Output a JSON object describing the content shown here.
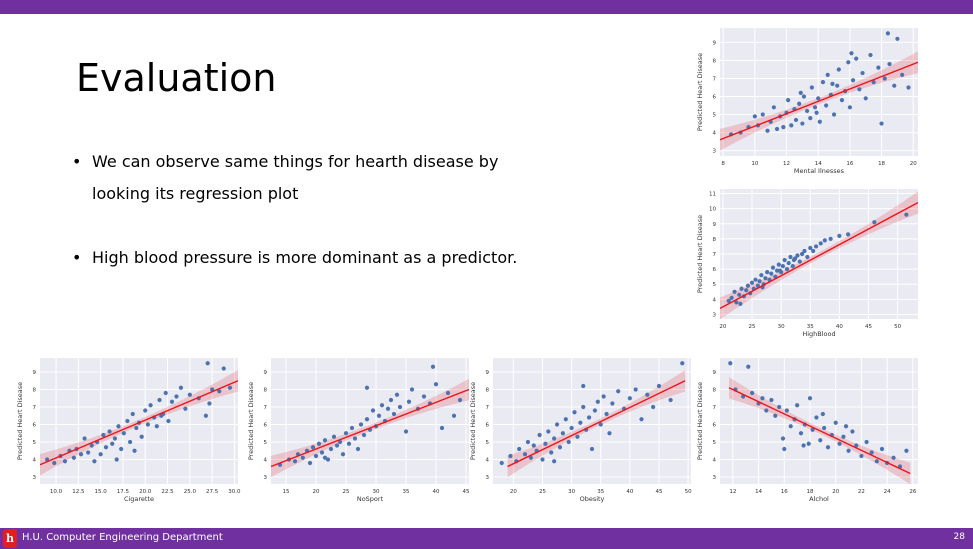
{
  "slide": {
    "title": "Evaluation",
    "bullets": [
      "We can observe same things for hearth disease by looking its regression plot",
      "High blood pressure is more dominant as a predictor."
    ]
  },
  "footer": {
    "text": "H.U. Computer Engineering Department",
    "page_number": "28"
  },
  "colors": {
    "band": "#7030a0",
    "logo": "#e02020",
    "plot_bg": "#eaeaf2",
    "point": "#4c72b0",
    "regression": "#e8151b"
  },
  "chart_data": [
    {
      "type": "scatter",
      "xlabel": "Mental Ilnesses",
      "ylabel": "Predicted Heart Disease",
      "xticks": [
        8,
        10,
        12,
        14,
        16,
        18,
        20
      ],
      "yticks": [
        3,
        4,
        5,
        6,
        7,
        8,
        9
      ],
      "xlim": [
        7.8,
        20.3
      ],
      "ylim": [
        2.7,
        9.8
      ],
      "regression": [
        [
          7.8,
          3.6
        ],
        [
          20.3,
          7.9
        ]
      ],
      "points": [
        [
          8.5,
          3.9
        ],
        [
          9.1,
          4.0
        ],
        [
          9.6,
          4.3
        ],
        [
          10.0,
          4.9
        ],
        [
          10.2,
          4.4
        ],
        [
          10.5,
          5.0
        ],
        [
          10.8,
          4.1
        ],
        [
          11.0,
          4.6
        ],
        [
          11.2,
          5.4
        ],
        [
          11.4,
          4.2
        ],
        [
          11.6,
          4.9
        ],
        [
          11.8,
          4.3
        ],
        [
          12.0,
          5.1
        ],
        [
          12.1,
          5.8
        ],
        [
          12.3,
          4.4
        ],
        [
          12.5,
          5.3
        ],
        [
          12.6,
          4.7
        ],
        [
          12.8,
          5.6
        ],
        [
          13.0,
          4.5
        ],
        [
          13.1,
          6.0
        ],
        [
          13.3,
          5.2
        ],
        [
          13.5,
          4.8
        ],
        [
          13.6,
          6.5
        ],
        [
          13.8,
          5.4
        ],
        [
          14.0,
          5.9
        ],
        [
          14.1,
          4.6
        ],
        [
          14.3,
          6.8
        ],
        [
          14.5,
          5.5
        ],
        [
          14.6,
          7.2
        ],
        [
          14.8,
          6.1
        ],
        [
          15.0,
          5.0
        ],
        [
          15.2,
          6.6
        ],
        [
          15.3,
          7.5
        ],
        [
          15.5,
          5.8
        ],
        [
          15.7,
          6.3
        ],
        [
          15.9,
          7.9
        ],
        [
          16.0,
          5.4
        ],
        [
          16.2,
          6.9
        ],
        [
          16.4,
          8.1
        ],
        [
          16.6,
          6.4
        ],
        [
          16.8,
          7.3
        ],
        [
          17.0,
          5.9
        ],
        [
          17.3,
          8.3
        ],
        [
          17.5,
          6.8
        ],
        [
          17.8,
          7.6
        ],
        [
          18.0,
          4.5
        ],
        [
          18.2,
          7.0
        ],
        [
          18.5,
          7.8
        ],
        [
          18.8,
          6.6
        ],
        [
          19.0,
          9.2
        ],
        [
          19.3,
          7.2
        ],
        [
          19.7,
          6.5
        ],
        [
          18.4,
          9.5
        ],
        [
          16.1,
          8.4
        ],
        [
          14.9,
          6.7
        ],
        [
          13.9,
          5.1
        ],
        [
          12.9,
          6.2
        ]
      ]
    },
    {
      "type": "scatter",
      "xlabel": "HighBlood",
      "ylabel": "Predicted Heart Disease",
      "xticks": [
        20,
        25,
        30,
        35,
        40,
        45,
        50
      ],
      "yticks": [
        3,
        4,
        5,
        6,
        7,
        8,
        9,
        10,
        11
      ],
      "xlim": [
        19.5,
        53.5
      ],
      "ylim": [
        2.7,
        11.3
      ],
      "regression": [
        [
          19.5,
          3.4
        ],
        [
          53.5,
          10.4
        ]
      ],
      "points": [
        [
          21.0,
          3.9
        ],
        [
          21.5,
          4.1
        ],
        [
          22.0,
          4.5
        ],
        [
          22.3,
          3.8
        ],
        [
          22.8,
          4.3
        ],
        [
          23.2,
          4.7
        ],
        [
          23.6,
          4.2
        ],
        [
          24.0,
          4.6
        ],
        [
          24.3,
          4.9
        ],
        [
          24.7,
          4.4
        ],
        [
          25.0,
          5.1
        ],
        [
          25.3,
          4.7
        ],
        [
          25.6,
          5.3
        ],
        [
          26.0,
          4.9
        ],
        [
          26.3,
          5.2
        ],
        [
          26.6,
          5.6
        ],
        [
          27.0,
          5.0
        ],
        [
          27.3,
          5.4
        ],
        [
          27.6,
          5.8
        ],
        [
          28.0,
          5.3
        ],
        [
          28.3,
          5.7
        ],
        [
          28.6,
          6.1
        ],
        [
          29.0,
          5.5
        ],
        [
          29.3,
          5.9
        ],
        [
          29.6,
          6.3
        ],
        [
          30.0,
          5.8
        ],
        [
          30.3,
          6.2
        ],
        [
          30.6,
          6.6
        ],
        [
          31.0,
          6.0
        ],
        [
          31.3,
          6.4
        ],
        [
          31.6,
          6.8
        ],
        [
          32.0,
          6.2
        ],
        [
          32.4,
          6.7
        ],
        [
          32.8,
          6.9
        ],
        [
          33.2,
          6.5
        ],
        [
          33.6,
          7.0
        ],
        [
          34.0,
          7.2
        ],
        [
          34.5,
          6.8
        ],
        [
          35.0,
          7.4
        ],
        [
          35.5,
          7.2
        ],
        [
          36.0,
          7.5
        ],
        [
          36.8,
          7.7
        ],
        [
          37.5,
          7.9
        ],
        [
          38.5,
          8.0
        ],
        [
          40.0,
          8.2
        ],
        [
          41.5,
          8.3
        ],
        [
          46.0,
          9.1
        ],
        [
          51.5,
          9.6
        ],
        [
          23.0,
          3.7
        ],
        [
          26.8,
          4.8
        ],
        [
          29.8,
          5.9
        ],
        [
          32.2,
          6.6
        ]
      ]
    },
    {
      "type": "scatter",
      "xlabel": "Cigarette",
      "ylabel": "Predicted Heart Disease",
      "xticks": [
        10.0,
        12.5,
        15.0,
        17.5,
        20.0,
        22.5,
        25.0,
        27.5,
        30.0
      ],
      "yticks": [
        3,
        4,
        5,
        6,
        7,
        8,
        9
      ],
      "xlim": [
        8.2,
        30.4
      ],
      "ylim": [
        2.6,
        9.8
      ],
      "regression": [
        [
          8.2,
          3.7
        ],
        [
          30.4,
          8.5
        ]
      ],
      "points": [
        [
          9.0,
          4.0
        ],
        [
          9.8,
          3.8
        ],
        [
          10.5,
          4.2
        ],
        [
          11.0,
          3.9
        ],
        [
          11.5,
          4.5
        ],
        [
          12.0,
          4.1
        ],
        [
          12.3,
          4.6
        ],
        [
          12.8,
          4.3
        ],
        [
          13.2,
          5.2
        ],
        [
          13.6,
          4.4
        ],
        [
          14.0,
          4.8
        ],
        [
          14.3,
          3.9
        ],
        [
          14.6,
          5.0
        ],
        [
          15.0,
          4.3
        ],
        [
          15.3,
          5.4
        ],
        [
          15.6,
          4.7
        ],
        [
          16.0,
          5.6
        ],
        [
          16.3,
          4.9
        ],
        [
          16.6,
          5.2
        ],
        [
          17.0,
          5.9
        ],
        [
          17.3,
          4.6
        ],
        [
          17.6,
          5.5
        ],
        [
          18.0,
          6.2
        ],
        [
          18.3,
          5.0
        ],
        [
          18.6,
          6.6
        ],
        [
          19.0,
          5.8
        ],
        [
          19.3,
          6.1
        ],
        [
          19.6,
          5.3
        ],
        [
          20.0,
          6.8
        ],
        [
          20.3,
          6.0
        ],
        [
          20.6,
          7.1
        ],
        [
          21.0,
          6.4
        ],
        [
          21.3,
          5.9
        ],
        [
          21.6,
          7.4
        ],
        [
          22.0,
          6.6
        ],
        [
          22.3,
          7.8
        ],
        [
          22.6,
          6.2
        ],
        [
          23.0,
          7.3
        ],
        [
          23.5,
          7.6
        ],
        [
          24.0,
          8.1
        ],
        [
          24.5,
          6.9
        ],
        [
          25.0,
          7.7
        ],
        [
          26.0,
          7.5
        ],
        [
          26.8,
          6.5
        ],
        [
          27.2,
          7.2
        ],
        [
          27.5,
          8.0
        ],
        [
          28.3,
          7.9
        ],
        [
          28.8,
          9.2
        ],
        [
          29.5,
          8.1
        ],
        [
          27.0,
          9.5
        ],
        [
          18.8,
          4.5
        ],
        [
          16.8,
          4.0
        ],
        [
          21.8,
          6.5
        ]
      ]
    },
    {
      "type": "scatter",
      "xlabel": "NoSport",
      "ylabel": "Predicted Heart Disease",
      "xticks": [
        15,
        20,
        25,
        30,
        35,
        40,
        45
      ],
      "yticks": [
        3,
        4,
        5,
        6,
        7,
        8,
        9
      ],
      "xlim": [
        12.5,
        45.5
      ],
      "ylim": [
        2.6,
        9.8
      ],
      "regression": [
        [
          12.5,
          3.6
        ],
        [
          45.5,
          8.0
        ]
      ],
      "points": [
        [
          14.0,
          3.7
        ],
        [
          15.5,
          4.0
        ],
        [
          16.5,
          3.9
        ],
        [
          17.0,
          4.3
        ],
        [
          17.8,
          4.1
        ],
        [
          18.5,
          4.5
        ],
        [
          19.0,
          3.8
        ],
        [
          19.5,
          4.7
        ],
        [
          20.0,
          4.2
        ],
        [
          20.5,
          4.9
        ],
        [
          21.0,
          4.4
        ],
        [
          21.5,
          5.1
        ],
        [
          22.0,
          4.0
        ],
        [
          22.5,
          4.6
        ],
        [
          23.0,
          5.3
        ],
        [
          23.5,
          4.8
        ],
        [
          24.0,
          5.0
        ],
        [
          24.5,
          4.3
        ],
        [
          25.0,
          5.5
        ],
        [
          25.5,
          4.9
        ],
        [
          26.0,
          5.8
        ],
        [
          26.5,
          5.2
        ],
        [
          27.0,
          4.6
        ],
        [
          27.5,
          6.0
        ],
        [
          28.0,
          5.4
        ],
        [
          28.5,
          6.3
        ],
        [
          29.0,
          5.7
        ],
        [
          29.5,
          6.8
        ],
        [
          30.0,
          5.9
        ],
        [
          30.5,
          6.5
        ],
        [
          31.0,
          7.1
        ],
        [
          31.5,
          6.2
        ],
        [
          32.0,
          6.9
        ],
        [
          32.5,
          7.4
        ],
        [
          33.0,
          6.6
        ],
        [
          33.5,
          7.7
        ],
        [
          34.0,
          7.0
        ],
        [
          35.0,
          5.6
        ],
        [
          35.5,
          7.3
        ],
        [
          36.0,
          8.0
        ],
        [
          37.0,
          6.9
        ],
        [
          38.0,
          7.6
        ],
        [
          39.0,
          7.2
        ],
        [
          40.0,
          8.3
        ],
        [
          41.0,
          5.8
        ],
        [
          42.0,
          7.8
        ],
        [
          43.0,
          6.5
        ],
        [
          44.0,
          7.4
        ],
        [
          39.5,
          9.3
        ],
        [
          28.5,
          8.1
        ],
        [
          21.5,
          4.1
        ]
      ]
    },
    {
      "type": "scatter",
      "xlabel": "Obesity",
      "ylabel": "Predicted Heart Disease",
      "xticks": [
        20,
        25,
        30,
        35,
        40,
        45,
        50
      ],
      "yticks": [
        3,
        4,
        5,
        6,
        7,
        8,
        9
      ],
      "xlim": [
        16.5,
        50.5
      ],
      "ylim": [
        2.6,
        9.8
      ],
      "regression": [
        [
          19.0,
          3.6
        ],
        [
          49.5,
          8.5
        ]
      ],
      "points": [
        [
          18.0,
          3.8
        ],
        [
          19.5,
          4.2
        ],
        [
          20.5,
          3.9
        ],
        [
          21.0,
          4.6
        ],
        [
          22.0,
          4.3
        ],
        [
          22.5,
          5.0
        ],
        [
          23.0,
          4.1
        ],
        [
          23.5,
          4.8
        ],
        [
          24.0,
          4.5
        ],
        [
          24.5,
          5.4
        ],
        [
          25.0,
          4.0
        ],
        [
          25.5,
          4.9
        ],
        [
          26.0,
          5.6
        ],
        [
          26.5,
          4.4
        ],
        [
          27.0,
          5.2
        ],
        [
          27.5,
          6.0
        ],
        [
          28.0,
          4.7
        ],
        [
          28.5,
          5.5
        ],
        [
          29.0,
          6.3
        ],
        [
          29.5,
          5.0
        ],
        [
          30.0,
          5.8
        ],
        [
          30.5,
          6.7
        ],
        [
          31.0,
          5.3
        ],
        [
          31.5,
          6.1
        ],
        [
          32.0,
          7.0
        ],
        [
          32.5,
          5.7
        ],
        [
          33.0,
          6.4
        ],
        [
          33.5,
          4.6
        ],
        [
          34.0,
          6.8
        ],
        [
          34.5,
          7.3
        ],
        [
          35.0,
          6.0
        ],
        [
          35.5,
          7.6
        ],
        [
          36.0,
          6.6
        ],
        [
          36.5,
          5.5
        ],
        [
          37.0,
          7.2
        ],
        [
          38.0,
          7.9
        ],
        [
          39.0,
          6.9
        ],
        [
          40.0,
          7.5
        ],
        [
          41.0,
          8.0
        ],
        [
          42.0,
          6.3
        ],
        [
          43.0,
          7.7
        ],
        [
          44.0,
          7.0
        ],
        [
          45.0,
          8.2
        ],
        [
          47.0,
          7.4
        ],
        [
          49.0,
          9.5
        ],
        [
          32.0,
          8.2
        ],
        [
          27.0,
          3.9
        ]
      ]
    },
    {
      "type": "scatter",
      "xlabel": "Alchol",
      "ylabel": "Predicted Heart Disease",
      "xticks": [
        12,
        14,
        16,
        18,
        20,
        22,
        24,
        26
      ],
      "yticks": [
        3,
        4,
        5,
        6,
        7,
        8,
        9
      ],
      "xlim": [
        11.0,
        26.4
      ],
      "ylim": [
        2.6,
        9.8
      ],
      "regression": [
        [
          11.7,
          8.1
        ],
        [
          25.8,
          3.2
        ]
      ],
      "points": [
        [
          11.8,
          9.5
        ],
        [
          12.2,
          8.0
        ],
        [
          12.8,
          7.6
        ],
        [
          13.2,
          9.3
        ],
        [
          13.5,
          7.8
        ],
        [
          14.0,
          7.2
        ],
        [
          14.3,
          7.5
        ],
        [
          14.6,
          6.8
        ],
        [
          15.0,
          7.4
        ],
        [
          15.3,
          6.5
        ],
        [
          15.6,
          7.0
        ],
        [
          15.9,
          5.2
        ],
        [
          16.2,
          6.8
        ],
        [
          16.5,
          5.9
        ],
        [
          16.8,
          6.3
        ],
        [
          17.0,
          7.1
        ],
        [
          17.3,
          5.5
        ],
        [
          17.6,
          6.0
        ],
        [
          17.9,
          4.9
        ],
        [
          18.2,
          5.7
        ],
        [
          18.5,
          6.4
        ],
        [
          18.8,
          5.1
        ],
        [
          19.1,
          5.8
        ],
        [
          19.4,
          4.7
        ],
        [
          19.7,
          5.4
        ],
        [
          20.0,
          6.1
        ],
        [
          20.3,
          4.9
        ],
        [
          20.6,
          5.3
        ],
        [
          21.0,
          4.5
        ],
        [
          21.3,
          5.6
        ],
        [
          21.6,
          4.8
        ],
        [
          22.0,
          4.2
        ],
        [
          22.4,
          5.0
        ],
        [
          22.8,
          4.4
        ],
        [
          23.2,
          3.9
        ],
        [
          23.6,
          4.6
        ],
        [
          24.0,
          3.8
        ],
        [
          24.5,
          4.1
        ],
        [
          25.0,
          3.6
        ],
        [
          25.5,
          4.5
        ],
        [
          17.5,
          4.8
        ],
        [
          16.0,
          4.6
        ],
        [
          18.0,
          7.5
        ],
        [
          19.0,
          6.6
        ],
        [
          20.8,
          5.9
        ]
      ]
    }
  ]
}
